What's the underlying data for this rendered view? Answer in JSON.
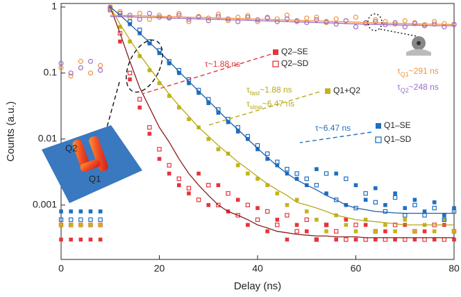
{
  "chart_data": {
    "type": "scatter",
    "xlabel": "Delay (ns)",
    "ylabel": "Counts (a.u.)",
    "ylog": true,
    "xlim": [
      0,
      80
    ],
    "ylim": [
      0.00015,
      1.13
    ],
    "xticks": [
      0,
      20,
      40,
      60,
      80
    ],
    "yticks": [
      0.001,
      0.01,
      0.1,
      1
    ],
    "x": [
      0,
      2,
      4,
      6,
      8,
      10,
      12,
      14,
      16,
      18,
      20,
      22,
      24,
      26,
      28,
      30,
      32,
      34,
      36,
      38,
      40,
      42,
      44,
      46,
      48,
      50,
      52,
      54,
      56,
      58,
      60,
      62,
      64,
      66,
      68,
      70,
      72,
      74,
      76,
      78,
      80
    ],
    "series": [
      {
        "name": "Q2–SE",
        "color": "#e8333a",
        "marker": "square-filled",
        "values": [
          0.0003,
          0.0003,
          0.0003,
          0.0003,
          0.0003,
          1,
          0.3,
          0.08,
          0.03,
          0.012,
          0.005,
          0.003,
          0.002,
          0.0015,
          0.003,
          0.001,
          0.002,
          0.0008,
          0.0012,
          0.0005,
          0.0009,
          0.0004,
          0.0006,
          0.0003,
          0.0005,
          0.0004,
          0.0003,
          0.0005,
          0.0003,
          0.0006,
          0.0003,
          0.0005,
          0.0003,
          0.0004,
          0.0003,
          0.0005,
          0.0003,
          0.0004,
          0.0003,
          0.0005,
          0.0003
        ]
      },
      {
        "name": "Q2–SD",
        "color": "#e8333a",
        "marker": "square-open",
        "values": [
          0.0005,
          0.0005,
          0.0005,
          0.0005,
          0.0005,
          0.9,
          0.4,
          0.1,
          0.04,
          0.015,
          0.007,
          0.004,
          0.0025,
          0.0018,
          0.0012,
          0.002,
          0.001,
          0.0015,
          0.0007,
          0.001,
          0.0006,
          0.0008,
          0.0005,
          0.0007,
          0.0004,
          0.0006,
          0.0003,
          0.0005,
          0.0004,
          0.0003,
          0.0005,
          0.0003,
          0.0004,
          0.0003,
          0.0005,
          0.0003,
          0.0004,
          0.0003,
          0.0005,
          0.0003,
          0.0004
        ]
      },
      {
        "name": "Q1+Q2",
        "color": "#c3b41b",
        "marker": "square-filled",
        "values": [
          0.0005,
          0.0005,
          0.0005,
          0.0005,
          0.0005,
          1,
          0.5,
          0.3,
          0.18,
          0.11,
          0.07,
          0.045,
          0.03,
          0.02,
          0.015,
          0.01,
          0.007,
          0.006,
          0.004,
          0.003,
          0.0025,
          0.002,
          0.0015,
          0.001,
          0.0012,
          0.0008,
          0.0006,
          0.0004,
          0.0007,
          0.0005,
          0.0004,
          0.0006,
          0.0004,
          0.0005,
          0.0004,
          0.0006,
          0.0004,
          0.0005,
          0.0004,
          0.0006,
          0.0004
        ]
      },
      {
        "name": "Q1–SE",
        "color": "#1f6fc0",
        "marker": "square-filled",
        "values": [
          0.0008,
          0.0008,
          0.0008,
          0.0008,
          0.0008,
          1,
          0.75,
          0.55,
          0.4,
          0.28,
          0.2,
          0.14,
          0.1,
          0.07,
          0.05,
          0.035,
          0.025,
          0.018,
          0.013,
          0.01,
          0.007,
          0.005,
          0.004,
          0.003,
          0.0025,
          0.002,
          0.0035,
          0.0015,
          0.003,
          0.001,
          0.002,
          0.0012,
          0.0018,
          0.001,
          0.0015,
          0.0009,
          0.0012,
          0.0008,
          0.0011,
          0.0007,
          0.0009
        ]
      },
      {
        "name": "Q1–SD",
        "color": "#1f6fc0",
        "marker": "square-open",
        "values": [
          0.0006,
          0.0006,
          0.0006,
          0.0006,
          0.0006,
          0.95,
          0.8,
          0.6,
          0.45,
          0.3,
          0.22,
          0.15,
          0.11,
          0.08,
          0.055,
          0.04,
          0.028,
          0.02,
          0.015,
          0.011,
          0.008,
          0.006,
          0.0045,
          0.0035,
          0.003,
          0.0025,
          0.002,
          0.003,
          0.0012,
          0.0025,
          0.0009,
          0.0015,
          0.0011,
          0.0008,
          0.0013,
          0.0007,
          0.001,
          0.0007,
          0.0009,
          0.0006,
          0.0008
        ]
      },
      {
        "color": "#f0913a",
        "marker": "circle-open",
        "values": [
          0.12,
          0.09,
          0.15,
          0.1,
          0.13,
          1,
          0.85,
          0.7,
          0.8,
          0.65,
          0.75,
          0.7,
          0.8,
          0.6,
          0.72,
          0.68,
          0.78,
          0.62,
          0.7,
          0.74,
          0.6,
          0.7,
          0.66,
          0.75,
          0.6,
          0.68,
          0.7,
          0.58,
          0.66,
          0.62,
          0.7,
          0.56,
          0.64,
          0.6,
          0.55,
          0.62,
          0.58,
          0.54,
          0.6,
          0.56,
          0.55
        ]
      },
      {
        "color": "#9a6ac8",
        "marker": "circle-open",
        "values": [
          0.14,
          0.1,
          0.12,
          0.15,
          0.11,
          0.95,
          0.8,
          0.75,
          0.65,
          0.8,
          0.7,
          0.68,
          0.75,
          0.65,
          0.7,
          0.62,
          0.72,
          0.66,
          0.6,
          0.7,
          0.64,
          0.68,
          0.6,
          0.66,
          0.62,
          0.58,
          0.64,
          0.6,
          0.55,
          0.62,
          0.5,
          0.58,
          0.6,
          0.54,
          0.58,
          0.5,
          0.56,
          0.52,
          0.55,
          0.5,
          0.54
        ]
      },
      {
        "color": "#8b1a1a",
        "marker": "line",
        "values": [
          null,
          null,
          null,
          null,
          null,
          1,
          0.4,
          0.15,
          0.06,
          0.03,
          0.015,
          0.009,
          0.005,
          0.003,
          0.002,
          0.0014,
          0.001,
          0.0008,
          0.0007,
          0.0006,
          0.0005,
          0.00045,
          0.0004,
          0.00038,
          0.00036,
          0.00035,
          0.00034,
          0.00034,
          0.00033,
          0.00033,
          0.00033,
          0.00032,
          0.00032,
          0.00032,
          0.00032,
          0.00032,
          0.00032,
          0.00032,
          0.00032,
          0.00032,
          0.00032
        ]
      },
      {
        "color": "#b8a817",
        "marker": "line",
        "values": [
          null,
          null,
          null,
          null,
          null,
          1,
          0.55,
          0.32,
          0.19,
          0.12,
          0.075,
          0.048,
          0.032,
          0.022,
          0.015,
          0.011,
          0.008,
          0.006,
          0.0045,
          0.0035,
          0.0027,
          0.0021,
          0.0017,
          0.0014,
          0.0011,
          0.001,
          0.0009,
          0.0008,
          0.0007,
          0.00065,
          0.0006,
          0.00058,
          0.00056,
          0.00054,
          0.00052,
          0.0005,
          0.0005,
          0.0005,
          0.0005,
          0.0005,
          0.0005
        ]
      },
      {
        "color": "#1a5fa8",
        "marker": "line",
        "values": [
          null,
          null,
          null,
          null,
          null,
          1,
          0.75,
          0.55,
          0.4,
          0.29,
          0.21,
          0.15,
          0.105,
          0.075,
          0.053,
          0.038,
          0.027,
          0.019,
          0.014,
          0.01,
          0.0072,
          0.0053,
          0.0039,
          0.003,
          0.0024,
          0.002,
          0.0017,
          0.0014,
          0.0012,
          0.001,
          0.0009,
          0.00085,
          0.0008,
          0.00078,
          0.00076,
          0.00075,
          0.00075,
          0.00075,
          0.00075,
          0.00075,
          0.00075
        ]
      },
      {
        "color": "#f0913a",
        "marker": "line",
        "values": [
          null,
          null,
          null,
          null,
          null,
          0.75,
          0.745,
          0.74,
          0.735,
          0.73,
          0.72,
          0.715,
          0.71,
          0.7,
          0.695,
          0.69,
          0.68,
          0.675,
          0.67,
          0.66,
          0.655,
          0.65,
          0.64,
          0.635,
          0.63,
          0.62,
          0.615,
          0.61,
          0.6,
          0.595,
          0.59,
          0.58,
          0.575,
          0.57,
          0.565,
          0.56,
          0.555,
          0.55,
          0.55,
          0.545,
          0.54
        ]
      },
      {
        "color": "#9a6ac8",
        "marker": "line",
        "values": [
          null,
          null,
          null,
          null,
          null,
          0.72,
          0.715,
          0.71,
          0.7,
          0.695,
          0.69,
          0.68,
          0.675,
          0.67,
          0.66,
          0.655,
          0.65,
          0.64,
          0.635,
          0.63,
          0.62,
          0.615,
          0.61,
          0.6,
          0.595,
          0.59,
          0.58,
          0.575,
          0.57,
          0.56,
          0.555,
          0.55,
          0.545,
          0.54,
          0.535,
          0.53,
          0.53,
          0.525,
          0.52,
          0.52,
          0.52
        ]
      }
    ],
    "annotations": [
      {
        "color": "#e8333a",
        "parts": [
          "τ",
          "",
          "~1.88 ns"
        ]
      },
      {
        "color": "#b8a817",
        "parts": [
          "τ",
          "fast",
          "~1.88 ns"
        ]
      },
      {
        "color": "#b8a817",
        "parts": [
          "τ",
          "slow",
          "~6.47 ns"
        ]
      },
      {
        "color": "#1f6fc0",
        "parts": [
          "τ",
          "",
          "~6.47 ns"
        ]
      },
      {
        "color": "#f0913a",
        "parts": [
          "τ",
          "Q1",
          "~291 ns"
        ]
      },
      {
        "color": "#9a6ac8",
        "parts": [
          "τ",
          "Q2",
          "~248 ns"
        ]
      }
    ],
    "inset_labels": [
      "Q2",
      "Q1"
    ]
  }
}
